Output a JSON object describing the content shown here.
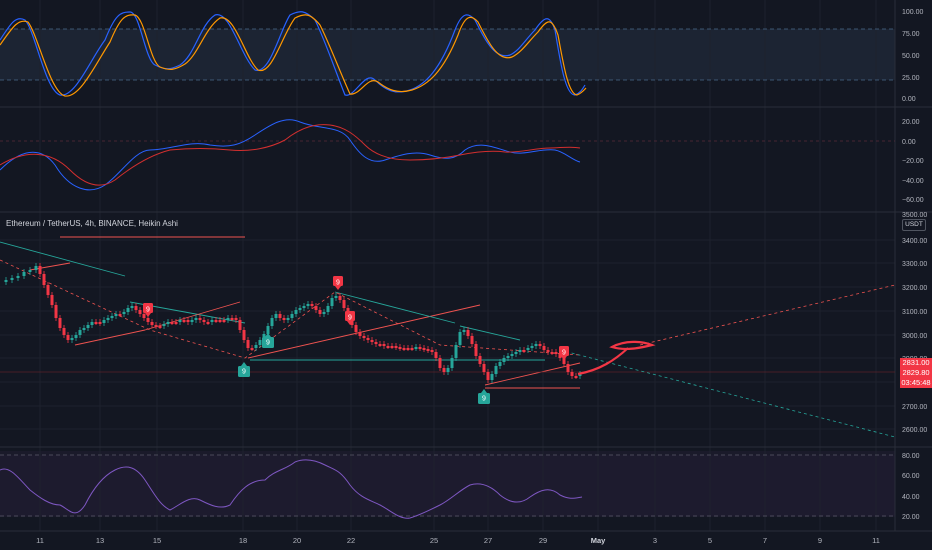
{
  "symbol_line": "Ethereum / TetherUS, 4h, BINANCE, Heikin Ashi",
  "currency_label": "USDT",
  "price_tags": {
    "current": "2831.00",
    "second": "2829.80",
    "countdown": "03:45:48"
  },
  "stoch_axis": [
    "100.00",
    "75.00",
    "50.00",
    "25.00",
    "0.00"
  ],
  "osc_axis": [
    "20.00",
    "0.00",
    "−20.00",
    "−40.00",
    "−60.00"
  ],
  "price_axis_cut": "3500.00",
  "price_axis": [
    "3400.00",
    "3300.00",
    "3200.00",
    "3100.00",
    "3000.00",
    "2900.00",
    "2800.00",
    "2700.00",
    "2600.00"
  ],
  "rsi_axis": [
    "80.00",
    "60.00",
    "40.00",
    "20.00"
  ],
  "time_axis": [
    "11",
    "13",
    "15",
    "18",
    "20",
    "22",
    "25",
    "27",
    "29",
    "May",
    "3",
    "5",
    "7",
    "9",
    "11"
  ],
  "markers": [
    {
      "label": "9",
      "kind": "sell"
    },
    {
      "label": "9",
      "kind": "sell"
    },
    {
      "label": "9",
      "kind": "sell"
    },
    {
      "label": "9",
      "kind": "sell"
    },
    {
      "label": "9",
      "kind": "buy"
    },
    {
      "label": "9",
      "kind": "buy"
    },
    {
      "label": "9",
      "kind": "buy"
    }
  ],
  "colors": {
    "background": "#131722",
    "up": "#26a69a",
    "down": "#f23645",
    "stoch_k": "#2962ff",
    "stoch_d": "#ff9800",
    "rsi": "#7e57c2",
    "projection": "#f23645"
  }
}
